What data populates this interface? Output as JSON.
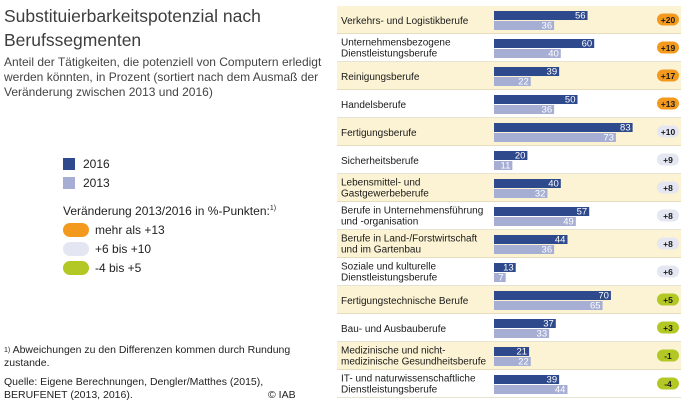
{
  "header": {
    "title": "Substituierbarkeitspotenzial nach Berufssegmenten",
    "subtitle": "Anteil der Tätigkeiten, die potenziell von Computern erledigt werden könnten, in Prozent (sortiert nach dem Ausmaß der Veränderung zwischen 2013 und 2016)"
  },
  "legend": {
    "series_2016": "2016",
    "series_2013": "2013",
    "change_title": "Veränderung 2013/2016 in %-Punkten:",
    "change_title_marker": "1)",
    "change_items": [
      {
        "label": "mehr als +13",
        "color": "#f39a1e"
      },
      {
        "label": "+6 bis +10",
        "color": "#e4e7f1"
      },
      {
        "label": "-4 bis +5",
        "color": "#b3c824"
      }
    ]
  },
  "footnote": {
    "marker": "1)",
    "text": "Abweichungen zu den Differenzen kommen durch Rundung zustande."
  },
  "source": "Quelle: Eigene Berechnungen, Dengler/Matthes (2015), BERUFENET (2013, 2016).",
  "copyright": "© IAB",
  "colors": {
    "bar_2016": "#2e4a8c",
    "bar_2013": "#a6aed3",
    "row_odd": "#fbf3d3",
    "row_even": "#ffffff",
    "separator": "#cfc7a6"
  },
  "chart_data": {
    "type": "bar",
    "orientation": "horizontal",
    "xlim": [
      0,
      100
    ],
    "series_names": [
      "2016",
      "2013"
    ],
    "categories": [
      {
        "label": [
          "Verkehrs- und Logistikberufe"
        ],
        "v2016": 56,
        "v2013": 36,
        "change": "+20",
        "group": "high"
      },
      {
        "label": [
          "Unternehmensbezogene",
          "Dienstleistungsberufe"
        ],
        "v2016": 60,
        "v2013": 40,
        "change": "+19",
        "group": "high"
      },
      {
        "label": [
          "Reinigungsberufe"
        ],
        "v2016": 39,
        "v2013": 22,
        "change": "+17",
        "group": "high"
      },
      {
        "label": [
          "Handelsberufe"
        ],
        "v2016": 50,
        "v2013": 36,
        "change": "+13",
        "group": "high"
      },
      {
        "label": [
          "Fertigungsberufe"
        ],
        "v2016": 83,
        "v2013": 73,
        "change": "+10",
        "group": "mid"
      },
      {
        "label": [
          "Sicherheitsberufe"
        ],
        "v2016": 20,
        "v2013": 11,
        "change": "+9",
        "group": "mid"
      },
      {
        "label": [
          "Lebensmittel- und",
          "Gastgewerbeberufe"
        ],
        "v2016": 40,
        "v2013": 32,
        "change": "+8",
        "group": "mid"
      },
      {
        "label": [
          "Berufe in Unternehmensführung",
          "und -organisation"
        ],
        "v2016": 57,
        "v2013": 49,
        "change": "+8",
        "group": "mid"
      },
      {
        "label": [
          "Berufe in Land-/Forstwirtschaft",
          "und im Gartenbau"
        ],
        "v2016": 44,
        "v2013": 36,
        "change": "+8",
        "group": "mid"
      },
      {
        "label": [
          "Soziale und kulturelle",
          "Dienstleistungsberufe"
        ],
        "v2016": 13,
        "v2013": 7,
        "change": "+6",
        "group": "mid"
      },
      {
        "label": [
          "Fertigungstechnische Berufe"
        ],
        "v2016": 70,
        "v2013": 65,
        "change": "+5",
        "group": "low"
      },
      {
        "label": [
          "Bau- und Ausbauberufe"
        ],
        "v2016": 37,
        "v2013": 33,
        "change": "+3",
        "group": "low"
      },
      {
        "label": [
          "Medizinische und nicht-",
          "medizinische Gesundheitsberufe"
        ],
        "v2016": 21,
        "v2013": 22,
        "change": "-1",
        "group": "low"
      },
      {
        "label": [
          "IT- und naturwissenschaftliche",
          "Dienstleistungsberufe"
        ],
        "v2016": 39,
        "v2013": 44,
        "change": "-4",
        "group": "low"
      }
    ]
  }
}
